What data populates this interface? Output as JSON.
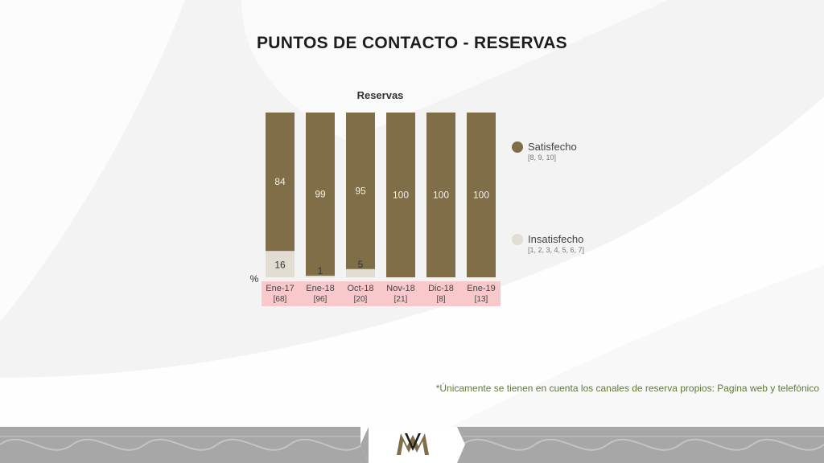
{
  "page": {
    "title": "PUNTOS DE CONTACTO - RESERVAS",
    "footnote": "*Únicamente se tienen en cuenta los canales de reserva propios: Pagina web y telefónico"
  },
  "chart_data": {
    "type": "bar",
    "stacked": true,
    "title": "Reservas",
    "ylabel": "%",
    "ylim": [
      0,
      100
    ],
    "categories": [
      "Ene-17",
      "Ene-18",
      "Oct-18",
      "Nov-18",
      "Dic-18",
      "Ene-19"
    ],
    "category_bases": [
      "[68]",
      "[96]",
      "[20]",
      "[21]",
      "[8]",
      "[13]"
    ],
    "series": [
      {
        "name": "Insatisfecho",
        "color": "#e2ddd3",
        "values": [
          16,
          1,
          5,
          0,
          0,
          0
        ],
        "labels": [
          "16",
          "1",
          "5",
          "",
          "",
          ""
        ]
      },
      {
        "name": "Satisfecho",
        "color": "#7f6e48",
        "values": [
          84,
          99,
          95,
          100,
          100,
          100
        ],
        "labels": [
          "84",
          "99",
          "95",
          "100",
          "100",
          "100"
        ]
      }
    ],
    "legend": [
      {
        "label": "Satisfecho",
        "sub": "[8, 9, 10]",
        "color": "#7f6e48"
      },
      {
        "label": "Insatisfecho",
        "sub": "[1, 2, 3, 4, 5, 6, 7]",
        "color": "#e2ddd3"
      }
    ],
    "category_band_color": "#f8c8cb",
    "legend_position": "right",
    "grid": false
  },
  "colors": {
    "accent": "#7f6e48",
    "footer": "#a7a7a7",
    "footnote": "#5f7a34"
  }
}
